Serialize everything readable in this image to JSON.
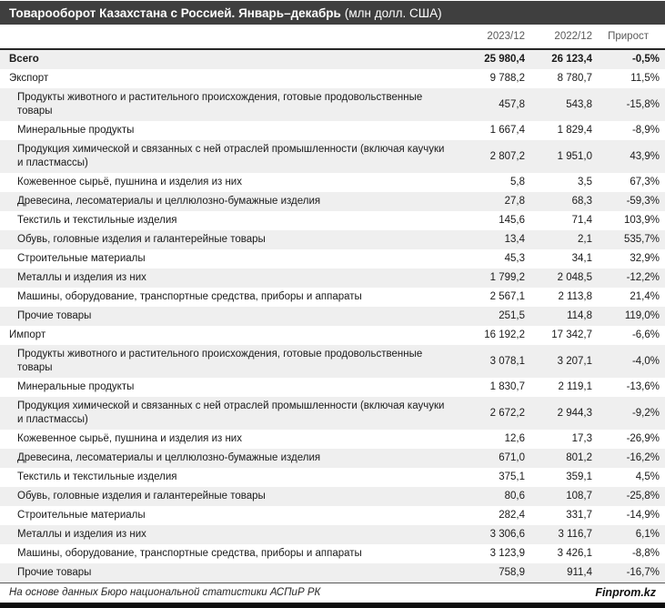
{
  "title": {
    "main": "Товарооборот Казахстана с Россией. Январь–декабрь",
    "unit": "(млн долл. США)"
  },
  "chart_data": {
    "type": "table",
    "title": "Товарооборот Казахстана с Россией. Январь–декабрь (млн долл. США)",
    "columns": [
      "",
      "2023/12",
      "2022/12",
      "Прирост"
    ],
    "rows": [
      {
        "label": "Всего",
        "v2023": "25 980,4",
        "v2022": "26 123,4",
        "growth": "-0,5%",
        "indent": 0,
        "bold": true
      },
      {
        "label": "Экспорт",
        "v2023": "9 788,2",
        "v2022": "8 780,7",
        "growth": "11,5%",
        "indent": 0,
        "bold": false
      },
      {
        "label": "Продукты животного и растительного происхождения, готовые продовольственные товары",
        "v2023": "457,8",
        "v2022": "543,8",
        "growth": "-15,8%",
        "indent": 1,
        "bold": false
      },
      {
        "label": "Минеральные продукты",
        "v2023": "1 667,4",
        "v2022": "1 829,4",
        "growth": "-8,9%",
        "indent": 1,
        "bold": false
      },
      {
        "label": "Продукция химической и связанных с ней отраслей промышленности (включая каучуки и пластмассы)",
        "v2023": "2 807,2",
        "v2022": "1 951,0",
        "growth": "43,9%",
        "indent": 1,
        "bold": false
      },
      {
        "label": "Кожевенное сырьё, пушнина и изделия из них",
        "v2023": "5,8",
        "v2022": "3,5",
        "growth": "67,3%",
        "indent": 1,
        "bold": false
      },
      {
        "label": "Древесина, лесоматериалы и целлюлозно-бумажные изделия",
        "v2023": "27,8",
        "v2022": "68,3",
        "growth": "-59,3%",
        "indent": 1,
        "bold": false
      },
      {
        "label": "Текстиль и текстильные изделия",
        "v2023": "145,6",
        "v2022": "71,4",
        "growth": "103,9%",
        "indent": 1,
        "bold": false
      },
      {
        "label": "Обувь, головные изделия и галантерейные товары",
        "v2023": "13,4",
        "v2022": "2,1",
        "growth": "535,7%",
        "indent": 1,
        "bold": false
      },
      {
        "label": "Строительные материалы",
        "v2023": "45,3",
        "v2022": "34,1",
        "growth": "32,9%",
        "indent": 1,
        "bold": false
      },
      {
        "label": "Металлы и изделия из них",
        "v2023": "1 799,2",
        "v2022": "2 048,5",
        "growth": "-12,2%",
        "indent": 1,
        "bold": false
      },
      {
        "label": "Машины, оборудование, транспортные средства, приборы и аппараты",
        "v2023": "2 567,1",
        "v2022": "2 113,8",
        "growth": "21,4%",
        "indent": 1,
        "bold": false
      },
      {
        "label": "Прочие товары",
        "v2023": "251,5",
        "v2022": "114,8",
        "growth": "119,0%",
        "indent": 1,
        "bold": false
      },
      {
        "label": "Импорт",
        "v2023": "16 192,2",
        "v2022": "17 342,7",
        "growth": "-6,6%",
        "indent": 0,
        "bold": false
      },
      {
        "label": "Продукты животного и растительного происхождения, готовые продовольственные товары",
        "v2023": "3 078,1",
        "v2022": "3 207,1",
        "growth": "-4,0%",
        "indent": 1,
        "bold": false
      },
      {
        "label": "Минеральные продукты",
        "v2023": "1 830,7",
        "v2022": "2 119,1",
        "growth": "-13,6%",
        "indent": 1,
        "bold": false
      },
      {
        "label": "Продукция химической и связанных с ней отраслей промышленности (включая каучуки и пластмассы)",
        "v2023": "2 672,2",
        "v2022": "2 944,3",
        "growth": "-9,2%",
        "indent": 1,
        "bold": false
      },
      {
        "label": "Кожевенное сырьё, пушнина и изделия из них",
        "v2023": "12,6",
        "v2022": "17,3",
        "growth": "-26,9%",
        "indent": 1,
        "bold": false
      },
      {
        "label": "Древесина, лесоматериалы и целлюлозно-бумажные изделия",
        "v2023": "671,0",
        "v2022": "801,2",
        "growth": "-16,2%",
        "indent": 1,
        "bold": false
      },
      {
        "label": "Текстиль и текстильные изделия",
        "v2023": "375,1",
        "v2022": "359,1",
        "growth": "4,5%",
        "indent": 1,
        "bold": false
      },
      {
        "label": "Обувь, головные изделия и галантерейные товары",
        "v2023": "80,6",
        "v2022": "108,7",
        "growth": "-25,8%",
        "indent": 1,
        "bold": false
      },
      {
        "label": "Строительные материалы",
        "v2023": "282,4",
        "v2022": "331,7",
        "growth": "-14,9%",
        "indent": 1,
        "bold": false
      },
      {
        "label": "Металлы и изделия из них",
        "v2023": "3 306,6",
        "v2022": "3 116,7",
        "growth": "6,1%",
        "indent": 1,
        "bold": false
      },
      {
        "label": "Машины, оборудование, транспортные средства, приборы и аппараты",
        "v2023": "3 123,9",
        "v2022": "3 426,1",
        "growth": "-8,8%",
        "indent": 1,
        "bold": false
      },
      {
        "label": "Прочие товары",
        "v2023": "758,9",
        "v2022": "911,4",
        "growth": "-16,7%",
        "indent": 1,
        "bold": false
      }
    ]
  },
  "footer": {
    "source": "На основе данных Бюро национальной статистики АСПиР РК",
    "brand": "Finprom.kz"
  },
  "colors": {
    "titlebar_bg": "#3f3f3f",
    "titlebar_text": "#ffffff",
    "zebra_row": "#efefef",
    "header_text": "#595959",
    "body_text": "#1a1a1a",
    "bottom_bar": "#0d0d0d"
  }
}
